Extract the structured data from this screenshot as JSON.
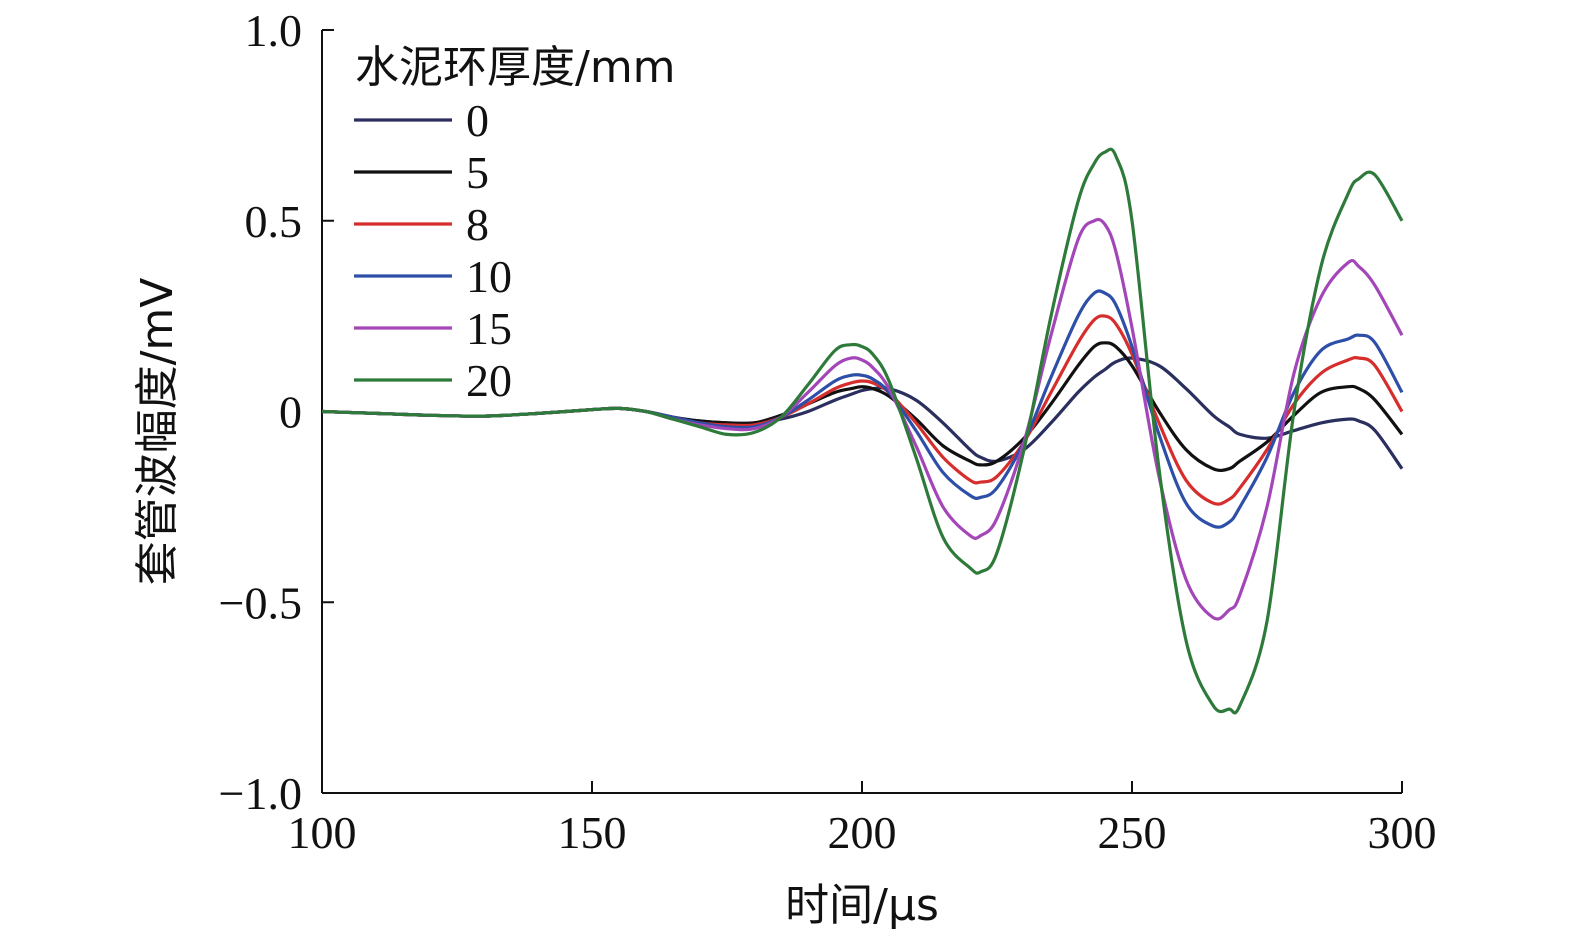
{
  "chart_data": {
    "type": "line",
    "xlabel": "时间/μs",
    "ylabel": "套管波幅度/mV",
    "xlim": [
      100,
      300
    ],
    "ylim": [
      -1.0,
      1.0
    ],
    "x_ticks": [
      "100",
      "150",
      "200",
      "250",
      "300"
    ],
    "y_ticks": [
      "1.0",
      "0.5",
      "0",
      "−0.5",
      "−1.0"
    ],
    "grid": false,
    "legend": {
      "title": "水泥环厚度/mm",
      "placement": "top-left"
    },
    "x": [
      100,
      110,
      120,
      130,
      140,
      150,
      155,
      160,
      165,
      170,
      175,
      180,
      185,
      190,
      195,
      198,
      200,
      202,
      205,
      210,
      215,
      220,
      222,
      225,
      230,
      235,
      240,
      243,
      245,
      247,
      250,
      255,
      260,
      265,
      268,
      270,
      275,
      280,
      285,
      290,
      292,
      295,
      300
    ],
    "series": [
      {
        "name": "0",
        "color": "#2a2f5e",
        "values": [
          0,
          -0.005,
          -0.01,
          -0.012,
          -0.005,
          0.005,
          0.008,
          0.0,
          -0.015,
          -0.025,
          -0.03,
          -0.03,
          -0.02,
          0.0,
          0.03,
          0.045,
          0.055,
          0.06,
          0.06,
          0.03,
          -0.03,
          -0.1,
          -0.12,
          -0.13,
          -0.1,
          -0.03,
          0.05,
          0.09,
          0.11,
          0.13,
          0.14,
          0.12,
          0.06,
          -0.01,
          -0.04,
          -0.06,
          -0.07,
          -0.05,
          -0.03,
          -0.02,
          -0.025,
          -0.05,
          -0.15
        ]
      },
      {
        "name": "5",
        "color": "#111111",
        "values": [
          0,
          -0.005,
          -0.01,
          -0.012,
          -0.005,
          0.005,
          0.008,
          0.0,
          -0.015,
          -0.025,
          -0.03,
          -0.03,
          -0.01,
          0.02,
          0.05,
          0.06,
          0.065,
          0.06,
          0.04,
          -0.02,
          -0.09,
          -0.13,
          -0.14,
          -0.13,
          -0.07,
          0.02,
          0.12,
          0.17,
          0.18,
          0.17,
          0.12,
          0.0,
          -0.1,
          -0.15,
          -0.15,
          -0.13,
          -0.08,
          -0.01,
          0.05,
          0.065,
          0.06,
          0.03,
          -0.06
        ]
      },
      {
        "name": "8",
        "color": "#d62d2d",
        "values": [
          0,
          -0.005,
          -0.01,
          -0.012,
          -0.005,
          0.005,
          0.008,
          0.0,
          -0.015,
          -0.03,
          -0.035,
          -0.035,
          -0.015,
          0.02,
          0.06,
          0.075,
          0.08,
          0.075,
          0.05,
          -0.03,
          -0.12,
          -0.18,
          -0.185,
          -0.17,
          -0.08,
          0.05,
          0.18,
          0.24,
          0.25,
          0.23,
          0.15,
          -0.03,
          -0.18,
          -0.24,
          -0.23,
          -0.2,
          -0.1,
          0.02,
          0.1,
          0.135,
          0.14,
          0.12,
          0.0
        ]
      },
      {
        "name": "10",
        "color": "#2d4fa8",
        "values": [
          0,
          -0.005,
          -0.01,
          -0.012,
          -0.005,
          0.005,
          0.008,
          0.0,
          -0.015,
          -0.03,
          -0.04,
          -0.04,
          -0.015,
          0.03,
          0.08,
          0.095,
          0.095,
          0.085,
          0.05,
          -0.05,
          -0.16,
          -0.22,
          -0.225,
          -0.2,
          -0.08,
          0.09,
          0.25,
          0.31,
          0.31,
          0.28,
          0.17,
          -0.06,
          -0.24,
          -0.3,
          -0.29,
          -0.25,
          -0.12,
          0.05,
          0.16,
          0.19,
          0.2,
          0.18,
          0.05
        ]
      },
      {
        "name": "15",
        "color": "#a347b8",
        "values": [
          0,
          -0.005,
          -0.01,
          -0.012,
          -0.005,
          0.005,
          0.008,
          0.0,
          -0.02,
          -0.035,
          -0.045,
          -0.045,
          -0.015,
          0.05,
          0.12,
          0.14,
          0.135,
          0.115,
          0.06,
          -0.09,
          -0.25,
          -0.325,
          -0.325,
          -0.28,
          -0.08,
          0.2,
          0.45,
          0.5,
          0.49,
          0.42,
          0.22,
          -0.17,
          -0.44,
          -0.54,
          -0.52,
          -0.48,
          -0.25,
          0.1,
          0.3,
          0.39,
          0.38,
          0.33,
          0.2
        ]
      },
      {
        "name": "20",
        "color": "#2e7a3a",
        "values": [
          0,
          -0.005,
          -0.01,
          -0.012,
          -0.005,
          0.005,
          0.008,
          0.0,
          -0.02,
          -0.04,
          -0.06,
          -0.055,
          -0.015,
          0.07,
          0.16,
          0.175,
          0.17,
          0.15,
          0.08,
          -0.12,
          -0.33,
          -0.41,
          -0.42,
          -0.37,
          -0.1,
          0.25,
          0.55,
          0.65,
          0.68,
          0.67,
          0.5,
          -0.15,
          -0.6,
          -0.77,
          -0.78,
          -0.77,
          -0.55,
          0.0,
          0.38,
          0.57,
          0.61,
          0.62,
          0.5
        ]
      }
    ]
  }
}
